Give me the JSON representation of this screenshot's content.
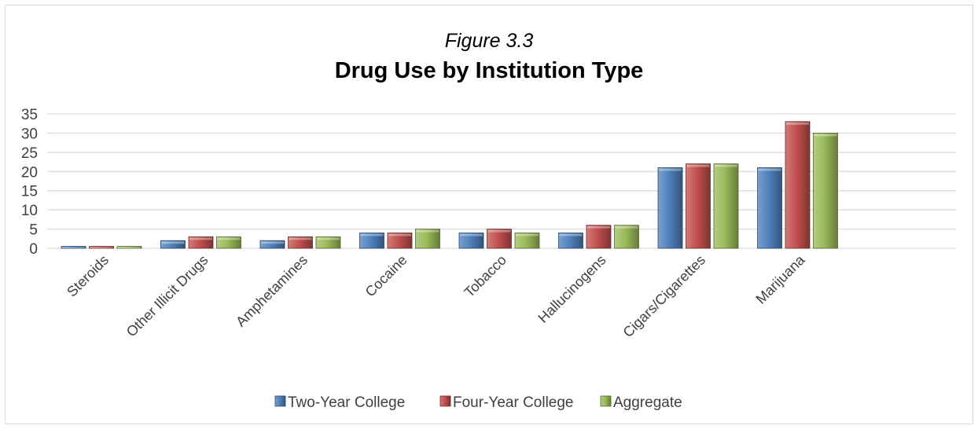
{
  "chart_data": {
    "type": "bar",
    "figure_label": "Figure 3.3",
    "title": "Drug Use by Institution Type",
    "xlabel": "",
    "ylabel": "",
    "ylim": [
      0,
      35
    ],
    "yticks": [
      0,
      5,
      10,
      15,
      20,
      25,
      30,
      35
    ],
    "grid": true,
    "legend_position": "bottom",
    "categories": [
      "Steroids",
      "Other Illicit Drugs",
      "Amphetamines",
      "Cocaine",
      "Tobacco",
      "Hallucinogens",
      "Cigars/Cigarettes",
      "Marijuana"
    ],
    "series": [
      {
        "name": "Two-Year College",
        "color": "#4f81bd",
        "values": [
          0.5,
          2,
          2,
          4,
          4,
          4,
          21,
          21
        ]
      },
      {
        "name": "Four-Year College",
        "color": "#c0504d",
        "values": [
          0.5,
          3,
          3,
          4,
          5,
          6,
          22,
          33
        ]
      },
      {
        "name": "Aggregate",
        "color": "#9bbb59",
        "values": [
          0.5,
          3,
          3,
          5,
          4,
          6,
          22,
          30
        ]
      }
    ]
  }
}
